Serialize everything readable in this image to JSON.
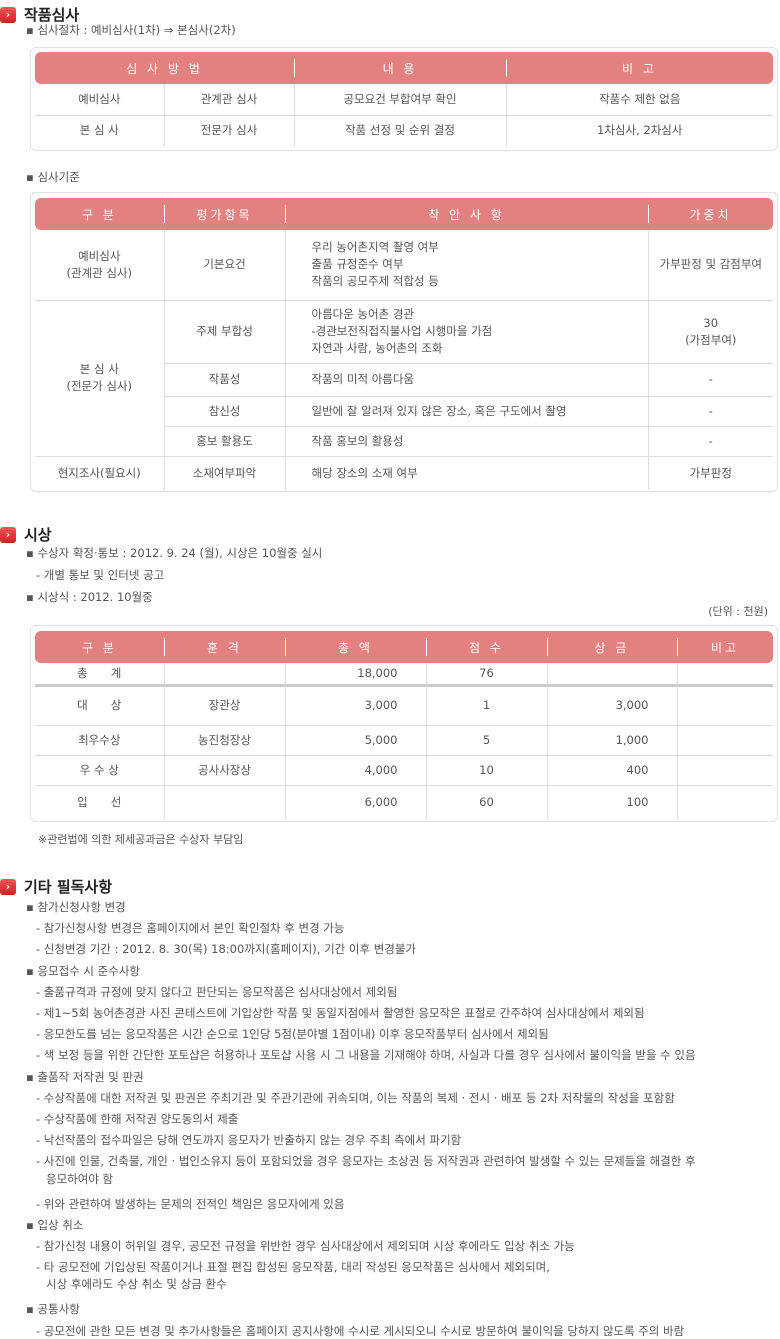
{
  "s1": {
    "title": "작품심사",
    "procedure": "▪ 심사절차 : 예비심사(1차) ⇒ 본심사(2차)",
    "t1": {
      "headers": [
        "심 사 방 법",
        "내 용",
        "비 고"
      ],
      "rows": [
        [
          "예비심사",
          "관계관 심사",
          "공모요건 부합여부 확인",
          "작품수 제한 없음"
        ],
        [
          "본 심 사",
          "전문가 심사",
          "작품 선정 및 순위 결정",
          "1차심사, 2차심사"
        ]
      ]
    },
    "criteria_label": "▪ 심사기준",
    "t2": {
      "headers": [
        "구 분",
        "평가항목",
        "착 안 사 항",
        "가중치"
      ],
      "g1": "예비심사",
      "g1b": "(관계관 심사)",
      "g2": "본 심 사",
      "g2b": "(전문가 심사)",
      "g3": "현지조사(필요시)",
      "rows": [
        {
          "item": "기본요건",
          "lines": [
            "우리 농어촌지역 촬영 여부",
            "출품 규정준수 여부",
            "작품의 공모주제 적합성 등"
          ],
          "w": "가부판정 및 감점부여"
        },
        {
          "item": "주제 부합성",
          "lines": [
            "아름다운 농어촌 경관",
            "-경관보전직접직불사업 시행마을 가점",
            "자연과 사람, 농어촌의 조화"
          ],
          "w": "30",
          "w2": "(가점부여)"
        },
        {
          "item": "작품성",
          "lines": [
            "작품의 미적 아름다움"
          ],
          "w": "-"
        },
        {
          "item": "참신성",
          "lines": [
            "일반에 잘 알려져 있지 않은 장소, 혹은 구도에서 촬영"
          ],
          "w": "-"
        },
        {
          "item": "홍보 활용도",
          "lines": [
            "작품 홍보의 활용성"
          ],
          "w": "-"
        },
        {
          "item": "소재여부파악",
          "lines": [
            "해당 장소의 소재 여부"
          ],
          "w": "가부판정"
        }
      ]
    }
  },
  "s2": {
    "title": "시상",
    "l1": "▪ 수상자 확정·통보 : 2012. 9. 24 (월), 시상은 10월중 실시",
    "l2": "- 개별 통보 및 인터넷 공고",
    "l3": "▪ 시상식 : 2012. 10월중",
    "unit": "(단위 : 천원)",
    "t3": {
      "headers": [
        "구 분",
        "훈 격",
        "총 액",
        "점 수",
        "상 금",
        "비고"
      ],
      "rows": [
        [
          "총　　계",
          "",
          "18,000",
          "76",
          "",
          ""
        ],
        [
          "대　　상",
          "장관상",
          "3,000",
          "1",
          "3,000",
          ""
        ],
        [
          "최우수상",
          "농진청장상",
          "5,000",
          "5",
          "1,000",
          ""
        ],
        [
          "우 수 상",
          "공사사장상",
          "4,000",
          "10",
          "400",
          ""
        ],
        [
          "입　　선",
          "",
          "6,000",
          "60",
          "100",
          ""
        ]
      ]
    },
    "note": "※관련법에 의한 제세공과금은 수상자 부담임"
  },
  "s3": {
    "title": "기타 필독사항",
    "lines": [
      [
        "h",
        "▪ 참가신청사항 변경"
      ],
      [
        "s",
        "- 참가신청사항 변경은 홈페이지에서 본인 확인절차 후 변경 가능"
      ],
      [
        "s",
        "- 신청변경 기간 : 2012. 8. 30(목) 18:00까지(홈페이지), 기간 이후 변경불가"
      ],
      [
        "h",
        "▪ 응모접수 시 준수사항"
      ],
      [
        "s",
        "- 출품규격과 규정에 맞지 않다고 판단되는 응모작품은 심사대상에서 제외됨"
      ],
      [
        "s",
        "- 제1~5회 농어촌경관 사진 콘테스트에 기입상한 작품 및 동일지점에서 촬영한 응모작은 표절로 간주하여 심사대상에서 제외됨"
      ],
      [
        "s",
        "- 응모한도를 넘는 응모작품은 시간 순으로 1인당 5점(분야별 1점이내) 이후 응모작품부터 심사에서 제외됨"
      ],
      [
        "s",
        "- 색 보정 등을 위한 간단한 포토샵은 허용하나 포토샵 사용 시 그 내용을 기재해야 하며, 사실과 다를 경우 심사에서 불이익을 받을 수 있음"
      ],
      [
        "h",
        "▪ 출품작 저작권 및 판권"
      ],
      [
        "s",
        "- 수상작품에 대한 저작권 및 판권은 주최기관 및 주관기관에 귀속되며, 이는 작품의 복제 · 전시 · 배포 등 2차 저작물의 작성을 포함함"
      ],
      [
        "s",
        "- 수상작품에 한해 저작권 양도동의서 제출"
      ],
      [
        "s",
        "- 낙선작품의 접수파일은 당해 연도까지 응모자가 반출하지 않는 경우 주최 측에서 파기함"
      ],
      [
        "s",
        "- 사진에 인물, 건축물, 개인 · 법인소유지 등이 포함되었을 경우 응모자는 초상권 등 저작권과 관련하여 발생할 수 있는 문제들을 해결한 후"
      ],
      [
        "c",
        "응모하여야 함"
      ],
      [
        "s",
        "- 위와 관련하여 발생하는 문제의 전적인 책임은 응모자에게 있음"
      ],
      [
        "h",
        "▪ 입상 취소"
      ],
      [
        "s",
        "- 참가신청 내용이 허위일 경우, 공모전 규정을 위반한 경우 심사대상에서 제외되며 시상 후에라도 입상 취소 가능"
      ],
      [
        "s",
        "- 타 공모전에 기입상된 작품이거나 표절 편집 합성된 응모작품, 대리 작성된 응모작품은 심사에서 제외되며,"
      ],
      [
        "c",
        "시상 후에라도 수상 취소 및 상금 환수"
      ],
      [
        "h",
        "▪ 공통사항"
      ],
      [
        "s",
        "- 공모전에 관한 모든 변경 및 추가사항들은 홈페이지 공지사항에 수시로 게시되오니 수시로 방문하여 불이익을 당하지 않도록 주의 바람"
      ]
    ]
  }
}
